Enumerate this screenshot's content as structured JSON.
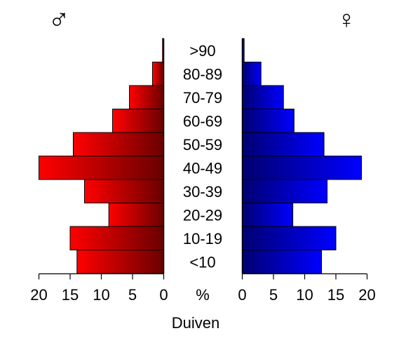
{
  "chart_data": {
    "type": "bar",
    "subtype": "population-pyramid",
    "categories": [
      ">90",
      "80-89",
      "70-79",
      "60-69",
      "50-59",
      "40-49",
      "30-39",
      "20-29",
      "10-19",
      "<10"
    ],
    "series": [
      {
        "name": "♂",
        "side": "left",
        "values": [
          0.2,
          1.8,
          5.5,
          8.2,
          14.5,
          20.0,
          12.7,
          8.8,
          15.0,
          13.9
        ],
        "color": "#ff0000",
        "dark_color": "#6a0000"
      },
      {
        "name": "♀",
        "side": "right",
        "values": [
          0.3,
          3.0,
          6.6,
          8.3,
          13.1,
          19.1,
          13.6,
          8.1,
          15.0,
          12.7
        ],
        "color": "#0000ff",
        "dark_color": "#000070"
      }
    ],
    "center_label": "%",
    "xlabel": "Duiven",
    "xlim": [
      0,
      20
    ],
    "ticks": [
      "0",
      "5",
      "10",
      "15",
      "20"
    ],
    "grid": false,
    "legend": "none"
  }
}
